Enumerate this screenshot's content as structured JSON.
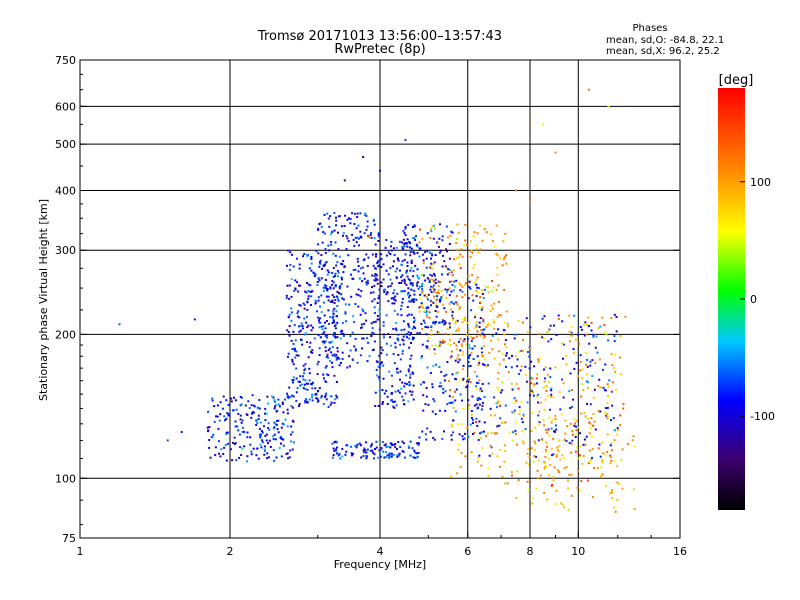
{
  "chart_data": {
    "type": "scatter",
    "title": "Tromsø 20171013 13:56:00–13:57:43",
    "subtitle": "RwPretec (8p)",
    "xlabel": "Frequency [MHz]",
    "ylabel": "Stationary phase Virtual Height [km]",
    "x_scale": "log",
    "y_scale": "log",
    "xlim": [
      1,
      16
    ],
    "ylim": [
      75,
      750
    ],
    "x_ticks": [
      1,
      2,
      4,
      6,
      8,
      10,
      16
    ],
    "y_ticks": [
      75,
      100,
      200,
      300,
      400,
      500,
      600,
      750
    ],
    "x_gridlines": [
      2,
      4,
      6,
      8,
      10
    ],
    "y_gridlines": [
      100,
      200,
      300,
      400,
      500,
      600
    ],
    "grid": true,
    "phases_box": {
      "title": "Phases",
      "line_o": "mean, sd,O: -84.8, 22.1",
      "line_x": "mean, sd,X:  96.2, 25.2"
    },
    "colorbar": {
      "label": "[deg]",
      "range": [
        -180,
        180
      ],
      "ticks": [
        100,
        0,
        -100
      ]
    },
    "series": [
      {
        "name": "O",
        "phase_mean": -84.8,
        "phase_sd": 22.1,
        "color_hint": "blue-purple",
        "clusters": [
          {
            "f": [
              1.8,
              2.7
            ],
            "h": [
              108,
              150
            ],
            "n": 220
          },
          {
            "f": [
              2.6,
              3.3
            ],
            "h": [
              140,
              300
            ],
            "n": 300
          },
          {
            "f": [
              3.0,
              4.0
            ],
            "h": [
              170,
              360
            ],
            "n": 300
          },
          {
            "f": [
              3.9,
              4.7
            ],
            "h": [
              140,
              320
            ],
            "n": 260
          },
          {
            "f": [
              3.2,
              4.8
            ],
            "h": [
              110,
              120
            ],
            "n": 120
          },
          {
            "f": [
              4.4,
              5.6
            ],
            "h": [
              200,
              340
            ],
            "n": 180
          },
          {
            "f": [
              4.8,
              6.5
            ],
            "h": [
              120,
              260
            ],
            "n": 200
          },
          {
            "f": [
              6.0,
              12.0
            ],
            "h": [
              110,
              220
            ],
            "n": 200
          }
        ],
        "isolated_points": [
          [
            1.2,
            210
          ],
          [
            1.5,
            120
          ],
          [
            1.6,
            125
          ],
          [
            1.7,
            215
          ],
          [
            3.4,
            420
          ],
          [
            3.7,
            470
          ],
          [
            4.0,
            440
          ],
          [
            4.5,
            510
          ]
        ]
      },
      {
        "name": "X",
        "phase_mean": 96.2,
        "phase_sd": 25.2,
        "color_hint": "yellow-orange",
        "clusters": [
          {
            "f": [
              4.8,
              7.2
            ],
            "h": [
              180,
              340
            ],
            "n": 220
          },
          {
            "f": [
              5.5,
              12.5
            ],
            "h": [
              100,
              220
            ],
            "n": 300
          },
          {
            "f": [
              7.0,
              13.0
            ],
            "h": [
              85,
              140
            ],
            "n": 120
          }
        ],
        "isolated_points": [
          [
            8.5,
            550
          ],
          [
            9.0,
            480
          ],
          [
            10.5,
            650
          ],
          [
            11.5,
            600
          ],
          [
            7.5,
            400
          ],
          [
            8.0,
            380
          ],
          [
            3.8,
            320
          ]
        ]
      }
    ]
  }
}
